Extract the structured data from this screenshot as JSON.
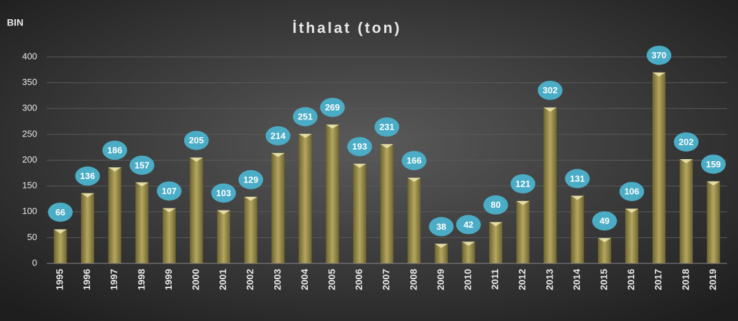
{
  "chart_data": {
    "type": "bar",
    "title": "İthalat (ton)",
    "y_axis_label": "BIN",
    "categories": [
      "1995",
      "1996",
      "1997",
      "1998",
      "1999",
      "2000",
      "2001",
      "2002",
      "2003",
      "2004",
      "2005",
      "2006",
      "2007",
      "2008",
      "2009",
      "2010",
      "2011",
      "2012",
      "2013",
      "2014",
      "2015",
      "2016",
      "2017",
      "2018",
      "2019"
    ],
    "values": [
      66,
      136,
      186,
      157,
      107,
      205,
      103,
      129,
      214,
      251,
      269,
      193,
      231,
      166,
      38,
      42,
      80,
      121,
      302,
      131,
      49,
      106,
      370,
      202,
      159
    ],
    "color": "#b5a760",
    "label_color": "#4bacc6",
    "ylim": [
      0,
      400
    ],
    "yticks": [
      0,
      50,
      100,
      150,
      200,
      250,
      300,
      350,
      400
    ],
    "grid": true
  }
}
